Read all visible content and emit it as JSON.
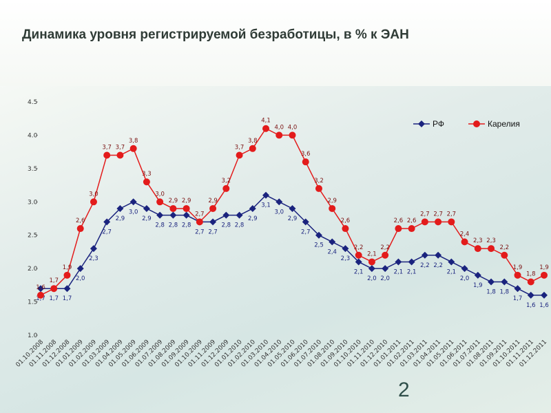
{
  "title": "Динамика уровня регистрируемой безработицы, в % к ЭАН",
  "page_number": "2",
  "chart_data": {
    "type": "line",
    "title": "Динамика уровня регистрируемой безработицы, в % к ЭАН",
    "xlabel": "",
    "ylabel": "",
    "ylim": [
      1.0,
      4.5
    ],
    "yticks": [
      "1.0",
      "1.5",
      "2.0",
      "2.5",
      "3.0",
      "3.5",
      "4.0",
      "4.5"
    ],
    "legend_position": "top-right",
    "grid": false,
    "categories": [
      "01.10.2008",
      "01.11.2008",
      "01.12.2008",
      "01.01.2009",
      "01.02.2009",
      "01.03.2009",
      "01.04.2009",
      "01.05.2009",
      "01.06.2009",
      "01.07.2009",
      "01.08.2009",
      "01.09.2009",
      "01.10.2009",
      "01.11.2009",
      "01.12.2009",
      "01.01.2010",
      "01.02.2010",
      "01.03.2010",
      "01.04.2010",
      "01.05.2010",
      "01.06.2010",
      "01.07.2010",
      "01.08.2010",
      "01.09.2010",
      "01.10.2010",
      "01.11.2010",
      "01.12.2010",
      "01.01.2011",
      "01.02.2011",
      "01.03.2011",
      "01.04.2011",
      "01.05.2011",
      "01.06.2011",
      "01.07.2011",
      "01.08.2011",
      "01.09.2011",
      "01.10.2011",
      "01.11.2011",
      "01.12.2011"
    ],
    "series": [
      {
        "name": "РФ",
        "color": "#1a237e",
        "marker": "diamond",
        "values": [
          1.7,
          1.7,
          1.7,
          2.0,
          2.3,
          2.7,
          2.9,
          3.0,
          2.9,
          2.8,
          2.8,
          2.8,
          2.7,
          2.7,
          2.8,
          2.8,
          2.9,
          3.1,
          3.0,
          2.9,
          2.7,
          2.5,
          2.4,
          2.3,
          2.1,
          2.0,
          2.0,
          2.1,
          2.1,
          2.2,
          2.2,
          2.1,
          2.0,
          1.9,
          1.8,
          1.8,
          1.7,
          1.6,
          1.6
        ]
      },
      {
        "name": "Карелия",
        "color": "#e31b1b",
        "marker": "circle",
        "values": [
          1.6,
          1.7,
          1.9,
          2.6,
          3.0,
          3.7,
          3.7,
          3.8,
          3.3,
          3.0,
          2.9,
          2.9,
          2.7,
          2.9,
          3.2,
          3.7,
          3.8,
          4.1,
          4.0,
          4.0,
          3.6,
          3.2,
          2.9,
          2.6,
          2.2,
          2.1,
          2.2,
          2.6,
          2.6,
          2.7,
          2.7,
          2.7,
          2.4,
          2.3,
          2.3,
          2.2,
          1.9,
          1.8,
          1.9
        ]
      }
    ]
  }
}
